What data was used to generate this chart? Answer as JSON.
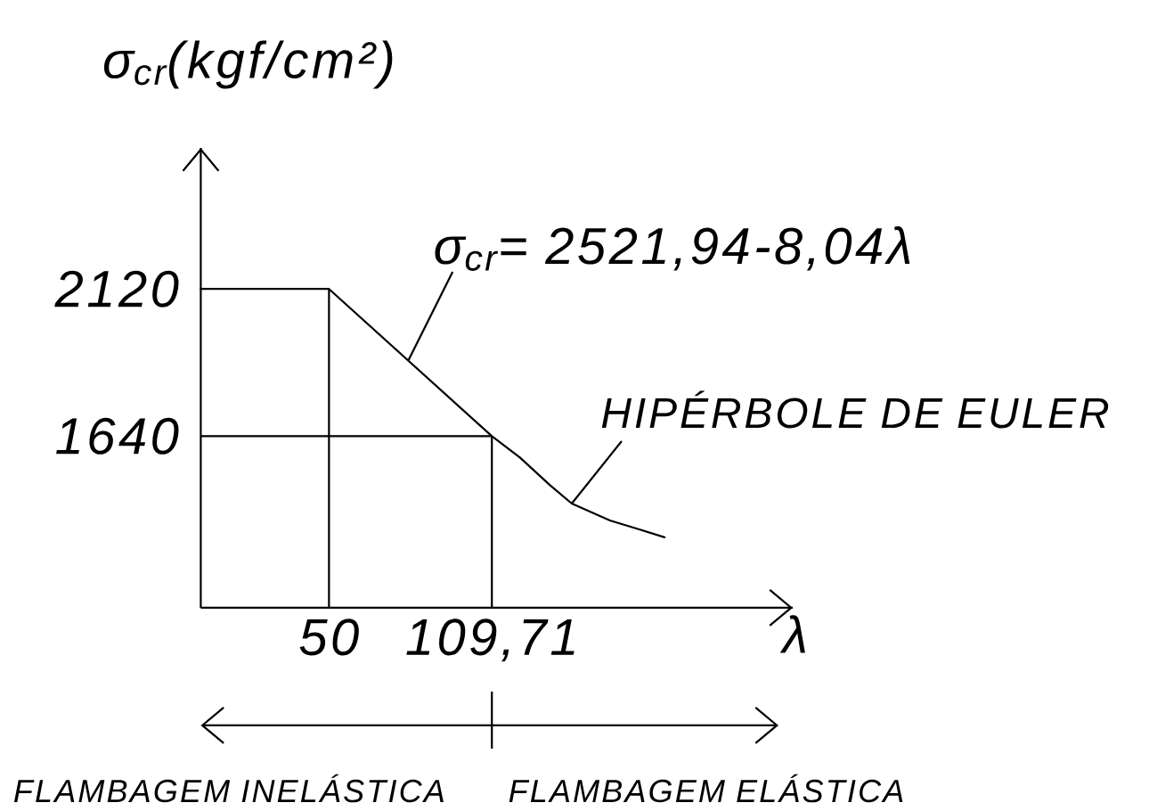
{
  "chart_data": {
    "type": "line",
    "ylabel": "σ$_{cr}$(kgf/cm²)",
    "xlabel": "λ",
    "x": [
      3,
      50,
      109.71,
      120,
      131,
      139,
      153,
      164,
      173
    ],
    "series": [
      {
        "color": "#000000",
        "values": [
          2120,
          2120,
          1640,
          1570,
          1480,
          1420,
          1365,
          1335,
          1310
        ]
      }
    ],
    "xlim": [
      3,
      220
    ],
    "ylim": [
      1080,
      2580
    ],
    "xticks": [
      50,
      {
        "value": 109.71,
        "label": "109,71"
      }
    ],
    "yticks": [
      1640,
      2120
    ],
    "ref_lines": [
      {
        "axis": "x",
        "value": 50
      },
      {
        "axis": "x",
        "value": 109.71
      },
      {
        "axis": "y",
        "value": 1640
      }
    ],
    "annotations": [
      {
        "text": "σ$_{cr}$= 2521,94-8,04λ",
        "x": 79,
        "y": 1885
      },
      {
        "text": "HIPÉRBOLE DE EULER",
        "x": 139,
        "y": 1420
      },
      "FLAMBAGEM INELÁSTICA",
      "FLAMBAGEM ELÁSTICA"
    ]
  }
}
